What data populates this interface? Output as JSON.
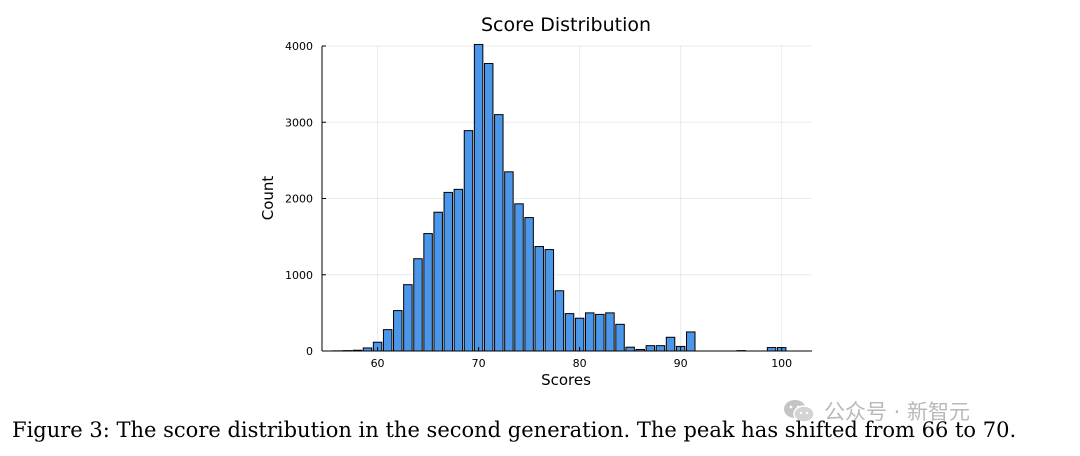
{
  "chart_data": {
    "type": "bar",
    "title": "Score Distribution",
    "xlabel": "Scores",
    "ylabel": "Count",
    "xlim": [
      54.5,
      103
    ],
    "ylim": [
      0,
      4000
    ],
    "xticks": [
      60,
      70,
      80,
      90,
      100
    ],
    "yticks": [
      0,
      1000,
      2000,
      3000,
      4000
    ],
    "grid": true,
    "bar_color": "#4b96e9",
    "bin_width": 1,
    "x": [
      56,
      57,
      58,
      59,
      60,
      61,
      62,
      63,
      64,
      65,
      66,
      67,
      68,
      69,
      70,
      71,
      72,
      73,
      74,
      75,
      76,
      77,
      78,
      79,
      80,
      81,
      82,
      83,
      84,
      85,
      86,
      87,
      88,
      89,
      90,
      91,
      92,
      93,
      94,
      95,
      96,
      97,
      98,
      99,
      100
    ],
    "values": [
      2,
      5,
      10,
      40,
      115,
      280,
      530,
      870,
      1210,
      1540,
      1820,
      2080,
      2120,
      2890,
      4020,
      3770,
      3100,
      2350,
      1930,
      1750,
      1370,
      1330,
      790,
      490,
      430,
      500,
      480,
      500,
      350,
      50,
      20,
      70,
      70,
      180,
      60,
      250,
      0,
      0,
      0,
      0,
      5,
      0,
      0,
      45,
      45
    ]
  },
  "caption": "Figure 3: The score distribution in the second generation. The peak has shifted from 66 to 70.",
  "watermark": {
    "text": "公众号 · 新智元",
    "icon": "wechat-icon"
  }
}
